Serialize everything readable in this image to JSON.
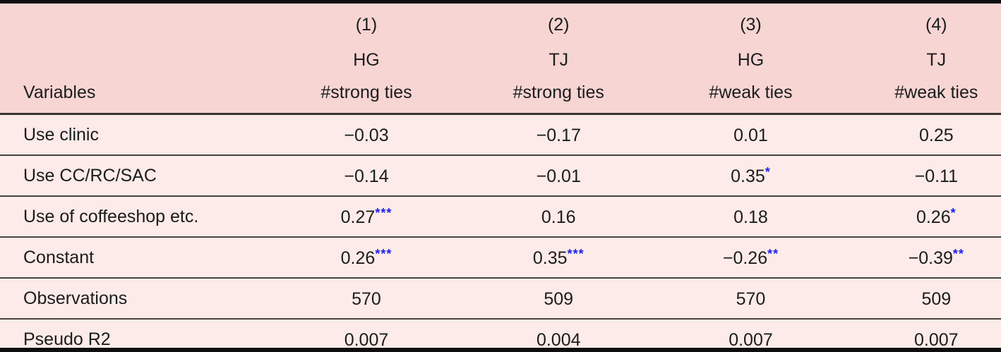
{
  "colors": {
    "header_bg": "#f6d5d3",
    "body_bg": "#fcebe8",
    "star_blue": "#1f1ff0",
    "rule_dark": "#47433f",
    "frame_black": "#0e0e0e"
  },
  "table": {
    "header": {
      "variables_label": "Variables",
      "columns": [
        {
          "number": "(1)",
          "group": "HG",
          "measure": "#strong ties"
        },
        {
          "number": "(2)",
          "group": "TJ",
          "measure": "#strong ties"
        },
        {
          "number": "(3)",
          "group": "HG",
          "measure": "#weak ties"
        },
        {
          "number": "(4)",
          "group": "TJ",
          "measure": "#weak ties"
        }
      ]
    },
    "rows": [
      {
        "label": "Use clinic",
        "cells": [
          {
            "value": "−0.03",
            "stars": ""
          },
          {
            "value": "−0.17",
            "stars": ""
          },
          {
            "value": "0.01",
            "stars": ""
          },
          {
            "value": "0.25",
            "stars": ""
          }
        ]
      },
      {
        "label": "Use CC/RC/SAC",
        "cells": [
          {
            "value": "−0.14",
            "stars": ""
          },
          {
            "value": "−0.01",
            "stars": ""
          },
          {
            "value": "0.35",
            "stars": "*"
          },
          {
            "value": "−0.11",
            "stars": ""
          }
        ]
      },
      {
        "label": "Use of coffeeshop etc.",
        "cells": [
          {
            "value": "0.27",
            "stars": "***"
          },
          {
            "value": "0.16",
            "stars": ""
          },
          {
            "value": "0.18",
            "stars": ""
          },
          {
            "value": "0.26",
            "stars": "*"
          }
        ]
      },
      {
        "label": "Constant",
        "cells": [
          {
            "value": "0.26",
            "stars": "***"
          },
          {
            "value": "0.35",
            "stars": "***"
          },
          {
            "value": "−0.26",
            "stars": "**"
          },
          {
            "value": "−0.39",
            "stars": "**"
          }
        ]
      },
      {
        "label": "Observations",
        "cells": [
          {
            "value": "570",
            "stars": ""
          },
          {
            "value": "509",
            "stars": ""
          },
          {
            "value": "570",
            "stars": ""
          },
          {
            "value": "509",
            "stars": ""
          }
        ]
      },
      {
        "label": "Pseudo R2",
        "cells": [
          {
            "value": "0.007",
            "stars": ""
          },
          {
            "value": "0.004",
            "stars": ""
          },
          {
            "value": "0.007",
            "stars": ""
          },
          {
            "value": "0.007",
            "stars": ""
          }
        ]
      }
    ]
  }
}
